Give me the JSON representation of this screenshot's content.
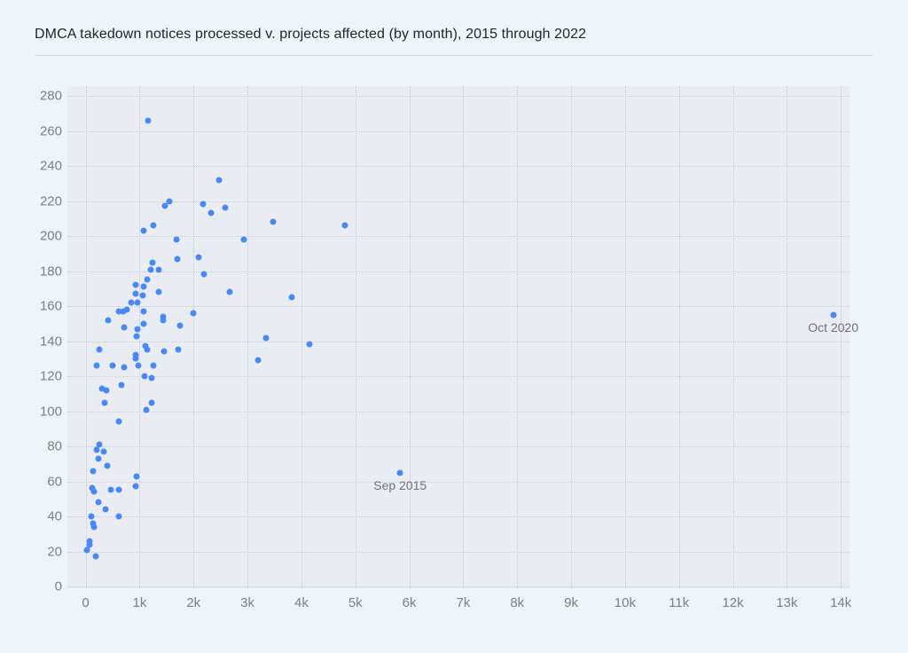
{
  "page": {
    "title": "DMCA takedown notices processed v. projects affected (by month), 2015 through 2022"
  },
  "chart_data": {
    "type": "scatter",
    "title": "DMCA takedown notices processed v. projects affected (by month), 2015 through 2022",
    "xlabel": "",
    "ylabel": "",
    "grid": true,
    "legend": "none",
    "xlim": [
      0,
      14200
    ],
    "ylim": [
      0,
      286
    ],
    "x_ticks": [
      "0",
      "1k",
      "2k",
      "3k",
      "4k",
      "5k",
      "6k",
      "7k",
      "8k",
      "9k",
      "10k",
      "11k",
      "12k",
      "13k",
      "14k"
    ],
    "x_tick_values": [
      0,
      1000,
      2000,
      3000,
      4000,
      5000,
      6000,
      7000,
      8000,
      9000,
      10000,
      11000,
      12000,
      13000,
      14000
    ],
    "y_ticks": [
      "0",
      "20",
      "40",
      "60",
      "80",
      "100",
      "120",
      "140",
      "160",
      "180",
      "200",
      "220",
      "240",
      "260",
      "280"
    ],
    "y_tick_values": [
      0,
      20,
      40,
      60,
      80,
      100,
      120,
      140,
      160,
      180,
      200,
      220,
      240,
      260,
      280
    ],
    "point_color": "#4a89f4",
    "points": [
      [
        1160,
        266
      ],
      [
        2470,
        232
      ],
      [
        1550,
        220
      ],
      [
        1470,
        217
      ],
      [
        2170,
        218
      ],
      [
        2590,
        216
      ],
      [
        2330,
        213
      ],
      [
        3470,
        208
      ],
      [
        4810,
        206
      ],
      [
        1250,
        206
      ],
      [
        1080,
        203
      ],
      [
        1690,
        198
      ],
      [
        2930,
        198
      ],
      [
        2100,
        188
      ],
      [
        1700,
        187
      ],
      [
        1240,
        185
      ],
      [
        1210,
        181
      ],
      [
        1360,
        181
      ],
      [
        2200,
        178
      ],
      [
        1140,
        175
      ],
      [
        920,
        172
      ],
      [
        1070,
        171
      ],
      [
        920,
        167
      ],
      [
        1350,
        168
      ],
      [
        1060,
        166
      ],
      [
        2670,
        168
      ],
      [
        3820,
        165
      ],
      [
        850,
        162
      ],
      [
        960,
        162
      ],
      [
        620,
        157
      ],
      [
        690,
        157
      ],
      [
        770,
        158
      ],
      [
        1080,
        157
      ],
      [
        1430,
        154
      ],
      [
        1440,
        152
      ],
      [
        410,
        152
      ],
      [
        1990,
        156
      ],
      [
        13860,
        155
      ],
      [
        1750,
        149
      ],
      [
        710,
        148
      ],
      [
        960,
        147
      ],
      [
        1080,
        150
      ],
      [
        940,
        143
      ],
      [
        3340,
        142
      ],
      [
        4150,
        138
      ],
      [
        260,
        135
      ],
      [
        1100,
        137
      ],
      [
        1140,
        135
      ],
      [
        1450,
        134
      ],
      [
        1710,
        135
      ],
      [
        920,
        132
      ],
      [
        930,
        130
      ],
      [
        3190,
        129
      ],
      [
        210,
        126
      ],
      [
        500,
        126
      ],
      [
        710,
        125
      ],
      [
        970,
        126
      ],
      [
        1260,
        126
      ],
      [
        1090,
        120
      ],
      [
        1230,
        119
      ],
      [
        670,
        115
      ],
      [
        310,
        113
      ],
      [
        390,
        112
      ],
      [
        360,
        105
      ],
      [
        1230,
        105
      ],
      [
        1120,
        101
      ],
      [
        610,
        94
      ],
      [
        250,
        81
      ],
      [
        200,
        78
      ],
      [
        330,
        77
      ],
      [
        240,
        73
      ],
      [
        400,
        69
      ],
      [
        140,
        66
      ],
      [
        940,
        63
      ],
      [
        5830,
        65
      ],
      [
        120,
        56
      ],
      [
        150,
        54
      ],
      [
        460,
        55
      ],
      [
        610,
        55
      ],
      [
        920,
        57
      ],
      [
        230,
        48
      ],
      [
        370,
        44
      ],
      [
        110,
        40
      ],
      [
        620,
        40
      ],
      [
        130,
        36
      ],
      [
        150,
        34
      ],
      [
        70,
        26
      ],
      [
        80,
        24
      ],
      [
        20,
        21
      ],
      [
        190,
        17
      ]
    ],
    "annotations": [
      {
        "label": "Sep 2015",
        "x": 5830,
        "y": 65
      },
      {
        "label": "Oct 2020",
        "x": 13860,
        "y": 155
      }
    ]
  },
  "colors": {
    "page_background": "#eff4fa",
    "plot_background": "#e9edf2",
    "gridline": "#c6cad0",
    "point": "#4a89f4",
    "tick_text": "#798087",
    "annotation_text": "#6c7278",
    "title_text": "#21262c"
  }
}
